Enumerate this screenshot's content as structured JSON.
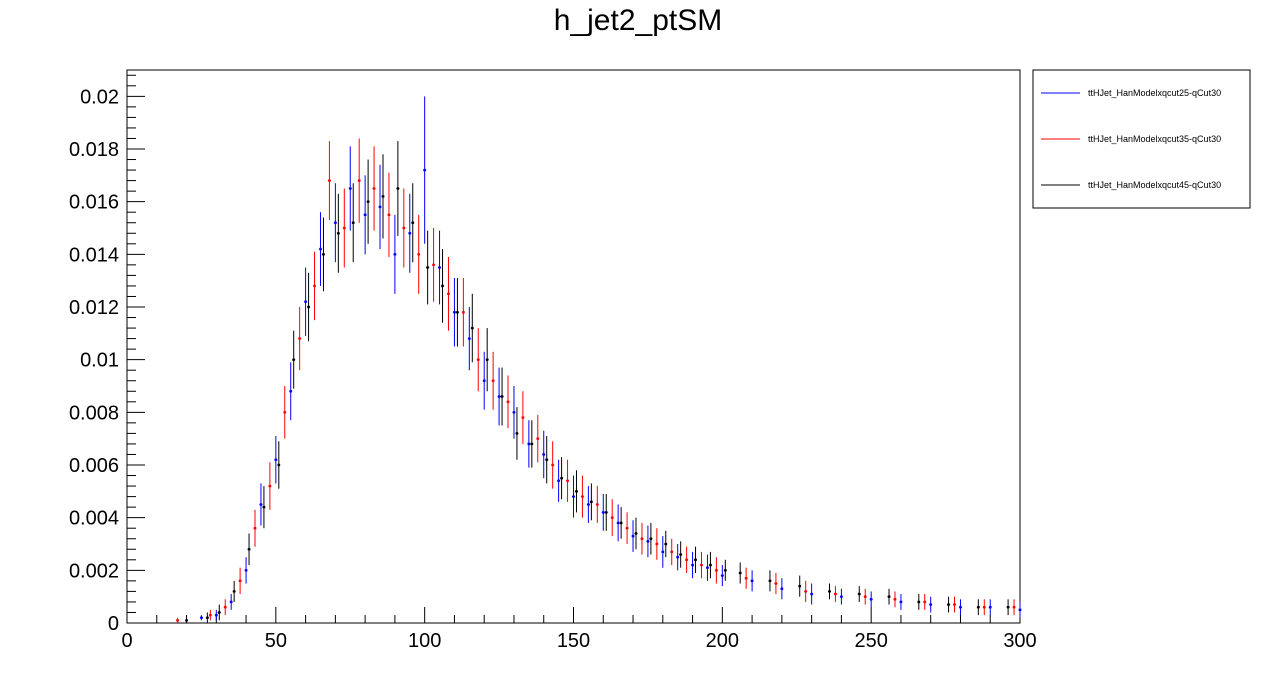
{
  "chart_data": {
    "type": "scatter",
    "title": "h_jet2_ptSM",
    "xlabel": "",
    "ylabel": "",
    "xlim": [
      0,
      300
    ],
    "ylim": [
      0,
      0.021
    ],
    "grid": false,
    "legend_placement": "top-right-outside",
    "x_ticks": [
      "0",
      "50",
      "100",
      "150",
      "200",
      "250",
      "300"
    ],
    "y_ticks": [
      "0",
      "0.002",
      "0.004",
      "0.006",
      "0.008",
      "0.01",
      "0.012",
      "0.014",
      "0.016",
      "0.018",
      "0.02"
    ],
    "series": [
      {
        "name": "ttHJet_HanModelxqcut25-qCut30",
        "color": "#0000ff",
        "x": [
          25,
          30,
          35,
          40,
          45,
          50,
          55,
          60,
          65,
          70,
          75,
          80,
          85,
          90,
          95,
          100,
          105,
          110,
          115,
          120,
          125,
          130,
          135,
          140,
          145,
          150,
          155,
          160,
          165,
          170,
          175,
          180,
          185,
          190,
          195,
          200,
          210,
          220,
          230,
          240,
          250,
          260,
          270,
          280,
          290,
          300
        ],
        "y": [
          0.0002,
          0.0003,
          0.0008,
          0.002,
          0.0045,
          0.0062,
          0.0088,
          0.0122,
          0.0142,
          0.0152,
          0.0165,
          0.0155,
          0.0158,
          0.014,
          0.0148,
          0.0172,
          0.0135,
          0.0118,
          0.0108,
          0.0092,
          0.0086,
          0.008,
          0.0068,
          0.0064,
          0.0054,
          0.0048,
          0.0045,
          0.0042,
          0.0038,
          0.0033,
          0.0031,
          0.0027,
          0.0025,
          0.0022,
          0.0021,
          0.0018,
          0.0016,
          0.0013,
          0.0011,
          0.001,
          0.0009,
          0.0008,
          0.0007,
          0.0006,
          0.0006,
          0.0005
        ],
        "err": [
          0.0001,
          0.0002,
          0.0003,
          0.0005,
          0.0008,
          0.0009,
          0.0011,
          0.0013,
          0.0014,
          0.0015,
          0.0016,
          0.0015,
          0.0016,
          0.0015,
          0.0015,
          0.0028,
          0.0014,
          0.0013,
          0.0012,
          0.0011,
          0.0011,
          0.001,
          0.0009,
          0.0009,
          0.0008,
          0.0008,
          0.0007,
          0.0007,
          0.0007,
          0.0006,
          0.0006,
          0.0006,
          0.0005,
          0.0005,
          0.0005,
          0.0004,
          0.0004,
          0.0004,
          0.0004,
          0.0003,
          0.0003,
          0.0003,
          0.0003,
          0.0003,
          0.0003,
          0.0003
        ]
      },
      {
        "name": "ttHJet_HanModelxqcut35-qCut30",
        "color": "#ff0000",
        "x": [
          17,
          28,
          33,
          38,
          43,
          48,
          53,
          58,
          63,
          68,
          73,
          78,
          83,
          88,
          93,
          98,
          103,
          108,
          113,
          118,
          123,
          128,
          133,
          138,
          143,
          148,
          153,
          158,
          163,
          168,
          173,
          178,
          183,
          188,
          193,
          198,
          208,
          218,
          228,
          238,
          248,
          258,
          268,
          278,
          288,
          298
        ],
        "y": [
          0.0001,
          0.0003,
          0.0006,
          0.0016,
          0.0036,
          0.0052,
          0.008,
          0.0108,
          0.0128,
          0.0168,
          0.015,
          0.0168,
          0.0165,
          0.0155,
          0.015,
          0.014,
          0.0136,
          0.0125,
          0.0118,
          0.01,
          0.0092,
          0.0084,
          0.0078,
          0.007,
          0.006,
          0.0054,
          0.0048,
          0.0045,
          0.004,
          0.0036,
          0.0032,
          0.003,
          0.0027,
          0.0024,
          0.0022,
          0.002,
          0.0017,
          0.0015,
          0.0012,
          0.0011,
          0.001,
          0.0009,
          0.0008,
          0.0007,
          0.0006,
          0.0006
        ],
        "err": [
          0.0001,
          0.0002,
          0.0003,
          0.0005,
          0.0007,
          0.0009,
          0.001,
          0.0012,
          0.0013,
          0.0015,
          0.0015,
          0.0016,
          0.0016,
          0.0016,
          0.0015,
          0.0015,
          0.0014,
          0.0014,
          0.0013,
          0.0012,
          0.0011,
          0.001,
          0.001,
          0.0009,
          0.0009,
          0.0008,
          0.0008,
          0.0007,
          0.0007,
          0.0006,
          0.0006,
          0.0006,
          0.0005,
          0.0005,
          0.0005,
          0.0005,
          0.0004,
          0.0004,
          0.0004,
          0.0003,
          0.0003,
          0.0003,
          0.0003,
          0.0003,
          0.0003,
          0.0003
        ]
      },
      {
        "name": "ttHJet_HanModelxqcut45-qCut30",
        "color": "#000000",
        "x": [
          20,
          27,
          31,
          36,
          41,
          46,
          51,
          56,
          61,
          66,
          71,
          76,
          81,
          86,
          91,
          96,
          101,
          106,
          111,
          116,
          121,
          126,
          131,
          136,
          141,
          146,
          151,
          156,
          161,
          166,
          171,
          176,
          181,
          186,
          191,
          196,
          201,
          206,
          216,
          226,
          236,
          246,
          256,
          266,
          276,
          286,
          296
        ],
        "y": [
          0.0001,
          0.0002,
          0.0004,
          0.0012,
          0.0028,
          0.0044,
          0.006,
          0.01,
          0.012,
          0.014,
          0.0148,
          0.0152,
          0.016,
          0.0162,
          0.0165,
          0.0152,
          0.0135,
          0.0128,
          0.0118,
          0.0112,
          0.01,
          0.0086,
          0.0072,
          0.0068,
          0.0062,
          0.0055,
          0.005,
          0.0046,
          0.0042,
          0.0038,
          0.0034,
          0.0032,
          0.003,
          0.0026,
          0.0024,
          0.0022,
          0.002,
          0.0019,
          0.0016,
          0.0014,
          0.0012,
          0.0011,
          0.001,
          0.0008,
          0.0007,
          0.0006,
          0.0006
        ],
        "err": [
          0.0001,
          0.0002,
          0.0003,
          0.0004,
          0.0006,
          0.0008,
          0.0009,
          0.0011,
          0.0013,
          0.0014,
          0.0015,
          0.0015,
          0.0016,
          0.0016,
          0.0018,
          0.0015,
          0.0014,
          0.0014,
          0.0013,
          0.0013,
          0.0012,
          0.0011,
          0.001,
          0.0009,
          0.0009,
          0.0008,
          0.0008,
          0.0007,
          0.0007,
          0.0006,
          0.0006,
          0.0006,
          0.0005,
          0.0005,
          0.0005,
          0.0005,
          0.0004,
          0.0004,
          0.0004,
          0.0004,
          0.0003,
          0.0003,
          0.0003,
          0.0003,
          0.0003,
          0.0003,
          0.0003
        ]
      }
    ]
  }
}
